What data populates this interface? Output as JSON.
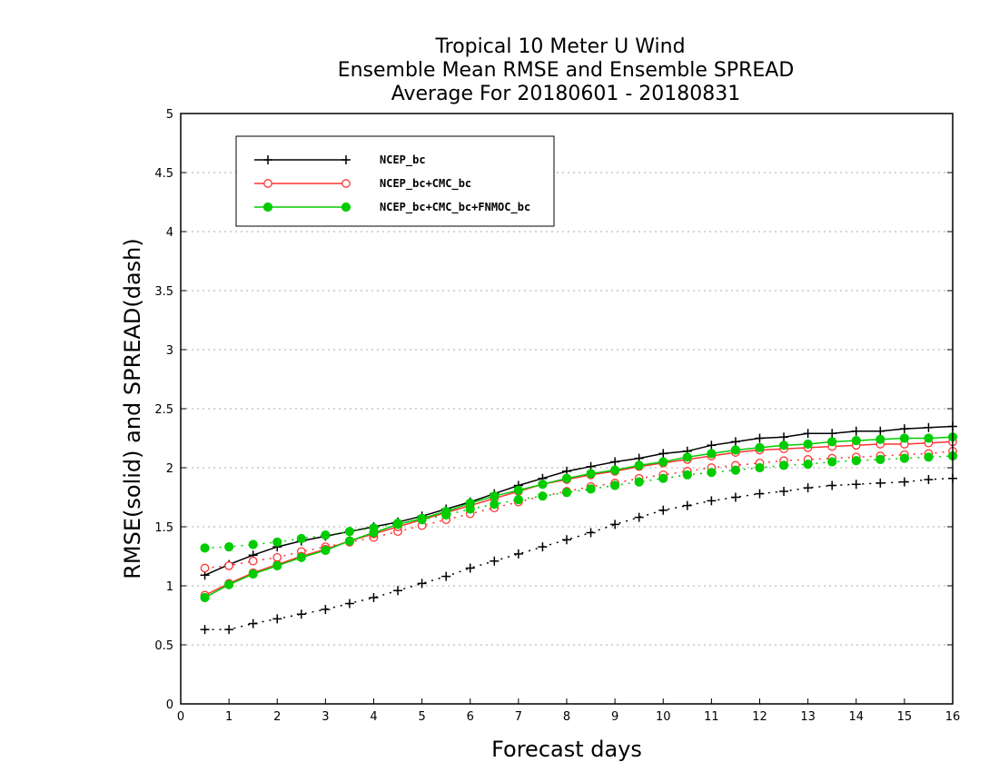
{
  "chart_data": {
    "type": "line",
    "title_lines": [
      "Tropical 10 Meter U Wind",
      "Ensemble Mean RMSE and Ensemble SPREAD",
      "Average For 20180601 - 20180831"
    ],
    "xlabel": "Forecast days",
    "ylabel": "RMSE(solid) and SPREAD(dash)",
    "xlim": [
      0,
      16
    ],
    "ylim": [
      0,
      5
    ],
    "xticks": [
      0,
      1,
      2,
      3,
      4,
      5,
      6,
      7,
      8,
      9,
      10,
      11,
      12,
      13,
      14,
      15,
      16
    ],
    "yticks": [
      0,
      0.5,
      1,
      1.5,
      2,
      2.5,
      3,
      3.5,
      4,
      4.5,
      5
    ],
    "grid": "horizontal-dotted",
    "legend_position": "top-left",
    "x": [
      0.5,
      1,
      1.5,
      2,
      2.5,
      3,
      3.5,
      4,
      4.5,
      5,
      5.5,
      6,
      6.5,
      7,
      7.5,
      8,
      8.5,
      9,
      9.5,
      10,
      10.5,
      11,
      11.5,
      12,
      12.5,
      13,
      13.5,
      14,
      14.5,
      15,
      15.5,
      16
    ],
    "series": [
      {
        "name": "NCEP_bc",
        "color": "#000000",
        "marker": "plus",
        "rmse": [
          1.09,
          1.18,
          1.26,
          1.33,
          1.38,
          1.42,
          1.46,
          1.5,
          1.54,
          1.59,
          1.65,
          1.71,
          1.78,
          1.85,
          1.91,
          1.97,
          2.01,
          2.05,
          2.08,
          2.12,
          2.14,
          2.19,
          2.22,
          2.25,
          2.26,
          2.29,
          2.29,
          2.31,
          2.31,
          2.33,
          2.34,
          2.35
        ],
        "spread": [
          0.63,
          0.63,
          0.68,
          0.72,
          0.76,
          0.8,
          0.85,
          0.9,
          0.96,
          1.02,
          1.08,
          1.15,
          1.21,
          1.27,
          1.33,
          1.39,
          1.45,
          1.52,
          1.58,
          1.64,
          1.68,
          1.72,
          1.75,
          1.78,
          1.8,
          1.83,
          1.85,
          1.86,
          1.87,
          1.88,
          1.9,
          1.91
        ]
      },
      {
        "name": "NCEP_bc+CMC_bc",
        "color": "#ff3333",
        "marker": "open-circle",
        "rmse": [
          0.92,
          1.02,
          1.11,
          1.18,
          1.25,
          1.31,
          1.38,
          1.44,
          1.5,
          1.56,
          1.62,
          1.68,
          1.74,
          1.8,
          1.86,
          1.9,
          1.94,
          1.97,
          2.01,
          2.04,
          2.07,
          2.1,
          2.13,
          2.15,
          2.16,
          2.17,
          2.18,
          2.19,
          2.2,
          2.2,
          2.21,
          2.22
        ],
        "spread": [
          1.15,
          1.17,
          1.21,
          1.24,
          1.29,
          1.33,
          1.37,
          1.41,
          1.46,
          1.51,
          1.56,
          1.61,
          1.66,
          1.71,
          1.76,
          1.8,
          1.84,
          1.87,
          1.91,
          1.94,
          1.97,
          2.0,
          2.02,
          2.04,
          2.06,
          2.07,
          2.08,
          2.09,
          2.1,
          2.11,
          2.12,
          2.14
        ]
      },
      {
        "name": "NCEP_bc+CMC_bc+FNMOC_bc",
        "color": "#00cc00",
        "marker": "filled-circle",
        "rmse": [
          0.9,
          1.01,
          1.1,
          1.17,
          1.24,
          1.3,
          1.38,
          1.45,
          1.52,
          1.57,
          1.63,
          1.7,
          1.76,
          1.81,
          1.86,
          1.91,
          1.95,
          1.98,
          2.02,
          2.05,
          2.09,
          2.12,
          2.15,
          2.17,
          2.19,
          2.2,
          2.22,
          2.23,
          2.24,
          2.25,
          2.25,
          2.26
        ],
        "spread": [
          1.32,
          1.33,
          1.35,
          1.37,
          1.4,
          1.43,
          1.46,
          1.49,
          1.53,
          1.56,
          1.6,
          1.65,
          1.69,
          1.73,
          1.76,
          1.79,
          1.82,
          1.85,
          1.88,
          1.91,
          1.94,
          1.96,
          1.98,
          2.0,
          2.02,
          2.03,
          2.05,
          2.06,
          2.07,
          2.08,
          2.09,
          2.1
        ]
      }
    ]
  }
}
